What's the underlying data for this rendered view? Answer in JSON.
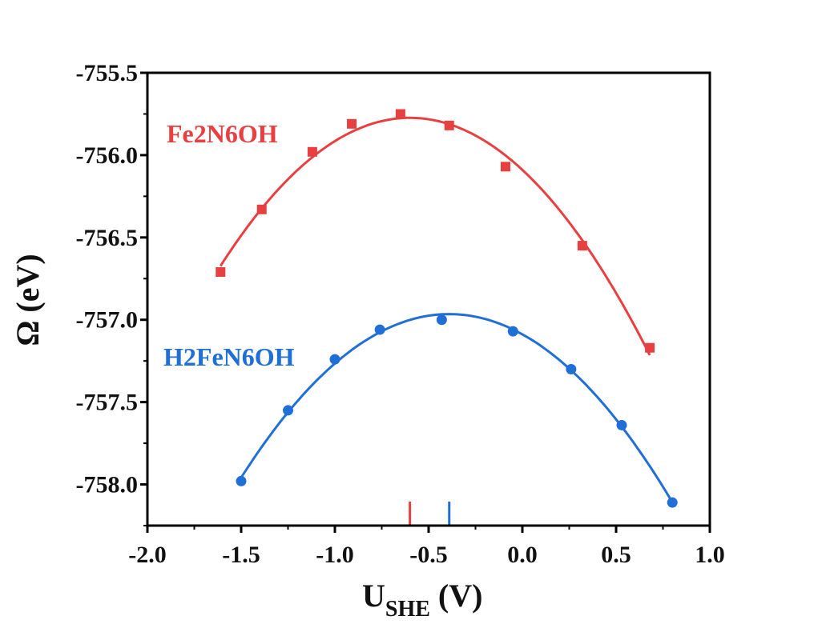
{
  "chart_data": {
    "type": "scatter",
    "title": "",
    "xlabel_main": "U",
    "xlabel_sub": "SHE",
    "xlabel_unit": "(V)",
    "ylabel": "Ω (eV)",
    "xlim": [
      -2.0,
      1.0
    ],
    "ylim": [
      -758.25,
      -755.5
    ],
    "xticks": [
      -2.0,
      -1.5,
      -1.0,
      -0.5,
      0.0,
      0.5,
      1.0
    ],
    "xtick_labels": [
      "-2.0",
      "-1.5",
      "-1.0",
      "-0.5",
      "0.0",
      "0.5",
      "1.0"
    ],
    "yticks": [
      -755.5,
      -756.0,
      -756.5,
      -757.0,
      -757.5,
      -758.0
    ],
    "ytick_labels": [
      "-755.5",
      "-756.0",
      "-756.5",
      "-757.0",
      "-757.5",
      "-758.0"
    ],
    "grid": false,
    "series": [
      {
        "name": "Fe2N6OH",
        "color": "#e84040",
        "marker": "square",
        "x": [
          -1.61,
          -1.39,
          -1.12,
          -0.91,
          -0.65,
          -0.39,
          -0.09,
          0.32,
          0.68
        ],
        "y": [
          -756.71,
          -756.33,
          -755.98,
          -755.81,
          -755.75,
          -755.82,
          -756.07,
          -756.55,
          -757.17
        ],
        "fit": {
          "type": "quadratic",
          "x_range": [
            -1.61,
            0.68
          ],
          "vertex_x": -0.6
        },
        "vertex_marker_x": -0.6
      },
      {
        "name": "H2FeN6OH",
        "color": "#1f6fd6",
        "marker": "circle",
        "x": [
          -1.5,
          -1.25,
          -1.0,
          -0.76,
          -0.43,
          -0.05,
          0.26,
          0.53,
          0.8
        ],
        "y": [
          -757.98,
          -757.55,
          -757.24,
          -757.06,
          -757.0,
          -757.07,
          -757.3,
          -757.64,
          -758.11
        ],
        "fit": {
          "type": "quadratic",
          "x_range": [
            -1.5,
            0.8
          ],
          "vertex_x": -0.39
        },
        "vertex_marker_x": -0.39
      }
    ]
  }
}
